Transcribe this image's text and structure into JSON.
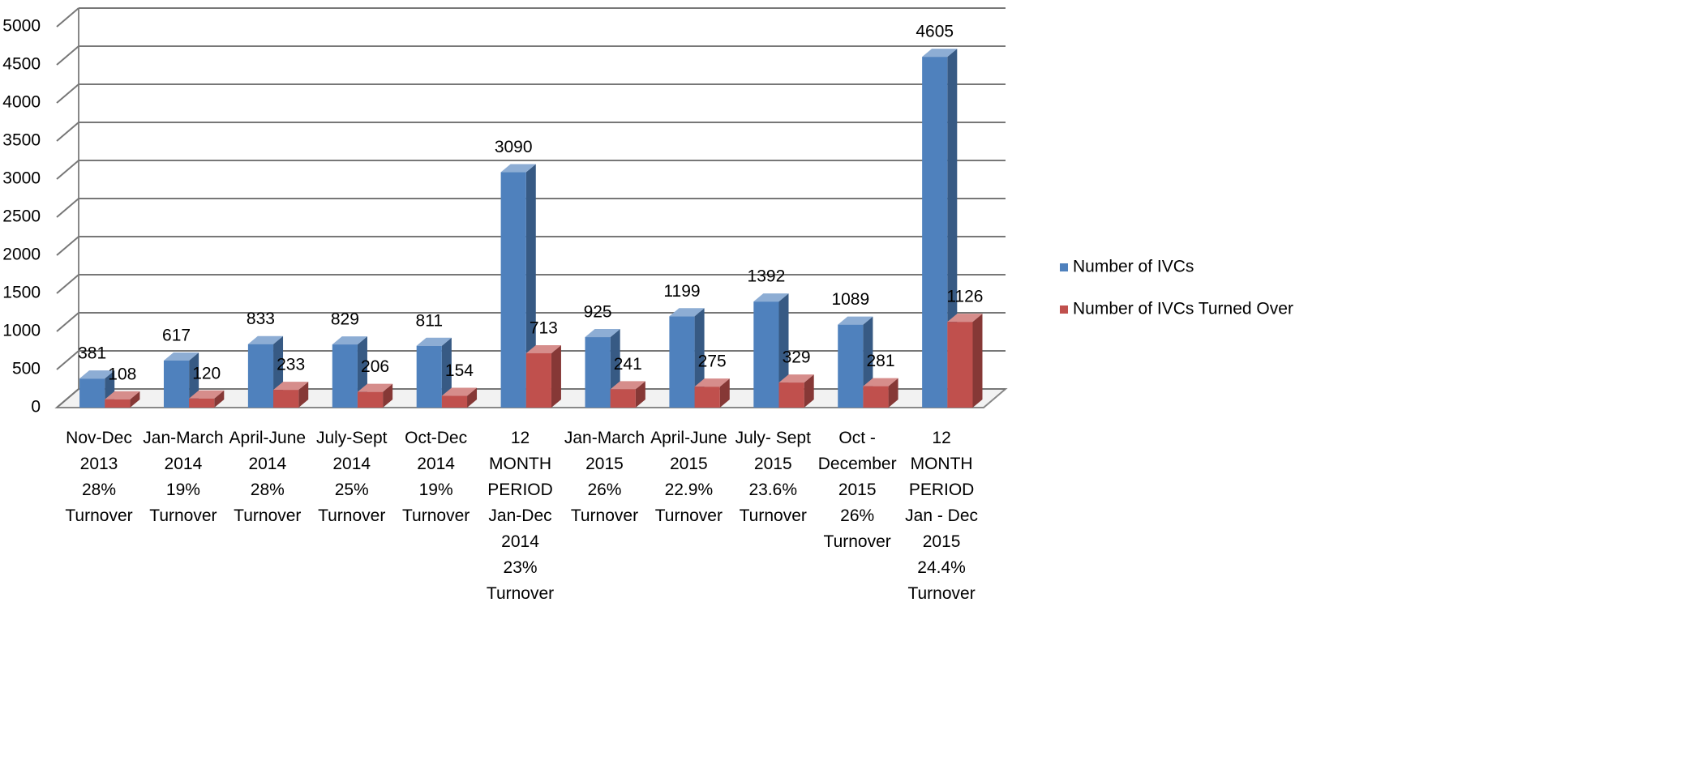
{
  "chart_data": {
    "type": "bar3d",
    "categories": [
      "Nov-Dec\n2013\n28%\nTurnover",
      "Jan-March\n2014\n19%\nTurnover",
      "April-June\n2014\n28%\nTurnover",
      "July-Sept\n2014\n25%\nTurnover",
      "Oct-Dec\n2014\n19%\nTurnover",
      "12 MONTH\nPERIOD\nJan-Dec\n2014\n23%\nTurnover",
      "Jan-March\n2015\n26%\nTurnover",
      "April-June\n2015\n22.9%\nTurnover",
      "July- Sept\n2015\n23.6%\nTurnover",
      "Oct -\nDecember\n2015\n26%\nTurnover",
      "12 MONTH\nPERIOD\nJan - Dec\n2015\n24.4%\nTurnover"
    ],
    "series": [
      {
        "name": "Number of IVCs",
        "color": "#4f81bd",
        "values": [
          381,
          617,
          833,
          829,
          811,
          3090,
          925,
          1199,
          1392,
          1089,
          4605
        ]
      },
      {
        "name": "Number of IVCs Turned Over",
        "color": "#c0504d",
        "values": [
          108,
          120,
          233,
          206,
          154,
          713,
          241,
          275,
          329,
          281,
          1126
        ]
      }
    ],
    "ylim": [
      0,
      5000
    ],
    "yticks": [
      0,
      500,
      1000,
      1500,
      2000,
      2500,
      3000,
      3500,
      4000,
      4500,
      5000
    ],
    "grid": true,
    "legend": "right"
  }
}
